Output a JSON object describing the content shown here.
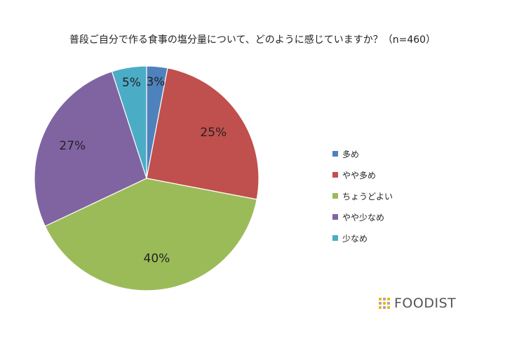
{
  "chart_data": {
    "type": "pie",
    "title": "普段ご自分で作る食事の塩分量について、どのように感じていますか？（n=460）",
    "slices": [
      {
        "label": "多め",
        "value": 3,
        "display": "3%",
        "color": "#4f81bd"
      },
      {
        "label": "やや多め",
        "value": 25,
        "display": "25%",
        "color": "#c0504d"
      },
      {
        "label": "ちょうどよい",
        "value": 40,
        "display": "40%",
        "color": "#9bbb59"
      },
      {
        "label": "やや少なめ",
        "value": 27,
        "display": "27%",
        "color": "#8064a2"
      },
      {
        "label": "少なめ",
        "value": 5,
        "display": "5%",
        "color": "#4bacc6"
      }
    ],
    "legend_position": "right"
  },
  "logo": {
    "text": "FOODIST",
    "dot_colors": [
      "#f4b400",
      "#a6a6a6",
      "#f4b400",
      "#a6a6a6",
      "#f4b400",
      "#a6a6a6",
      "#f4b400",
      "#a6a6a6",
      "#f4b400"
    ]
  }
}
